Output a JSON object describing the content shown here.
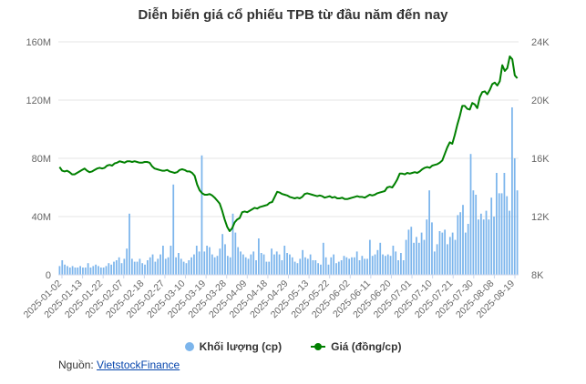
{
  "chart_data": {
    "type": "bar+line",
    "title": "Diễn biến giá cổ phiếu TPB từ đầu năm đến nay",
    "y_left": {
      "ticks": [
        "0",
        "40M",
        "80M",
        "120M",
        "160M"
      ],
      "range": [
        0,
        160000000
      ]
    },
    "y_right": {
      "ticks": [
        "8K",
        "12K",
        "16K",
        "20K",
        "24K"
      ],
      "range": [
        8000,
        24000
      ]
    },
    "x_tick_labels": [
      "2025-01-02",
      "2025-01-13",
      "2025-01-22",
      "2025-02-07",
      "2025-02-18",
      "2025-02-27",
      "2025-03-10",
      "2025-03-19",
      "2025-03-28",
      "2025-04-09",
      "2025-04-18",
      "2025-04-29",
      "2025-05-13",
      "2025-05-22",
      "2025-06-02",
      "2025-06-11",
      "2025-06-20",
      "2025-07-01",
      "2025-07-10",
      "2025-07-21",
      "2025-07-30",
      "2025-08-08",
      "2025-08-19"
    ],
    "series": [
      {
        "name": "Khối lượng (cp)",
        "type": "bar",
        "axis": "left",
        "color": "#7cb5ec",
        "values": [
          6,
          10,
          7,
          6,
          5,
          6,
          5,
          5,
          6,
          5,
          5,
          8,
          5,
          6,
          7,
          6,
          5,
          5,
          6,
          8,
          7,
          9,
          10,
          12,
          8,
          11,
          18,
          42,
          11,
          9,
          9,
          11,
          8,
          7,
          10,
          12,
          14,
          9,
          11,
          14,
          20,
          11,
          12,
          20,
          62,
          12,
          15,
          11,
          9,
          8,
          10,
          12,
          14,
          20,
          16,
          82,
          16,
          20,
          19,
          14,
          12,
          13,
          18,
          28,
          21,
          13,
          12,
          42,
          29,
          19,
          16,
          14,
          12,
          11,
          14,
          16,
          10,
          25,
          15,
          14,
          9,
          9,
          18,
          14,
          16,
          14,
          10,
          20,
          15,
          14,
          12,
          9,
          8,
          11,
          17,
          12,
          11,
          14,
          10,
          10,
          8,
          7,
          22,
          12,
          7,
          12,
          14,
          8,
          9,
          10,
          13,
          12,
          11,
          12,
          12,
          16,
          10,
          13,
          11,
          11,
          24,
          13,
          14,
          17,
          22,
          14,
          13,
          14,
          13,
          20,
          16,
          10,
          15,
          10,
          24,
          31,
          33,
          22,
          26,
          22,
          29,
          24,
          38,
          58,
          36,
          16,
          21,
          30,
          29,
          31,
          21,
          26,
          29,
          24,
          41,
          43,
          48,
          29,
          35,
          83,
          58,
          55,
          38,
          42,
          38,
          44,
          38,
          53,
          40,
          70,
          56,
          56,
          70,
          54,
          44,
          115,
          80,
          58
        ]
      },
      {
        "name": "Giá (đồng/cp)",
        "type": "line",
        "axis": "right",
        "color": "#008000",
        "values": [
          15400,
          15150,
          15100,
          15150,
          15050,
          14900,
          14900,
          15000,
          15100,
          15200,
          15300,
          15150,
          15050,
          15100,
          15200,
          15300,
          15350,
          15300,
          15350,
          15500,
          15550,
          15500,
          15650,
          15700,
          15800,
          15750,
          15700,
          15800,
          15800,
          15750,
          15800,
          15750,
          15700,
          15700,
          15750,
          15750,
          15700,
          15450,
          15300,
          15250,
          15200,
          15150,
          15150,
          15200,
          15100,
          15050,
          15000,
          15050,
          15200,
          15250,
          15200,
          15100,
          15100,
          15000,
          14800,
          14200,
          13800,
          13600,
          13500,
          13500,
          13550,
          13450,
          13300,
          13100,
          12900,
          12400,
          11800,
          11300,
          11000,
          11200,
          11600,
          11800,
          11900,
          12300,
          12350,
          12300,
          12400,
          12500,
          12600,
          12550,
          12650,
          12700,
          12750,
          12800,
          12950,
          13000,
          13350,
          13700,
          13650,
          13550,
          13500,
          13450,
          13350,
          13300,
          13250,
          13300,
          13250,
          13350,
          13550,
          13600,
          13550,
          13500,
          13450,
          13400,
          13450,
          13400,
          13300,
          13350,
          13400,
          13300,
          13350,
          13250,
          13250,
          13300,
          13200,
          13200,
          13250,
          13300,
          13350,
          13400,
          13350,
          13350,
          13300,
          13400,
          13500,
          13450,
          13500,
          13600,
          13650,
          13700,
          13750,
          14000,
          14050,
          14000,
          14250,
          14550,
          14950,
          14950,
          14900,
          15000,
          14950,
          15000,
          15050,
          15000,
          15100,
          15250,
          15350,
          15400,
          15350,
          15500,
          15550,
          15600,
          15700,
          15850,
          16300,
          16750,
          17100,
          17000,
          17600,
          18300,
          18900,
          19600,
          19600,
          19400,
          19350,
          19800,
          19700,
          19450,
          20200,
          20550,
          20600,
          20400,
          20700,
          21100,
          21200,
          21000,
          21300,
          22400,
          22000,
          22200,
          23000,
          22800,
          21700,
          21500
        ]
      }
    ],
    "legend_position": "bottom",
    "grid": true
  },
  "legend": {
    "bar_label": "Khối lượng (cp)",
    "line_label": "Giá (đồng/cp)"
  },
  "source": {
    "prefix": "Nguồn: ",
    "link_text": "VietstockFinance"
  }
}
